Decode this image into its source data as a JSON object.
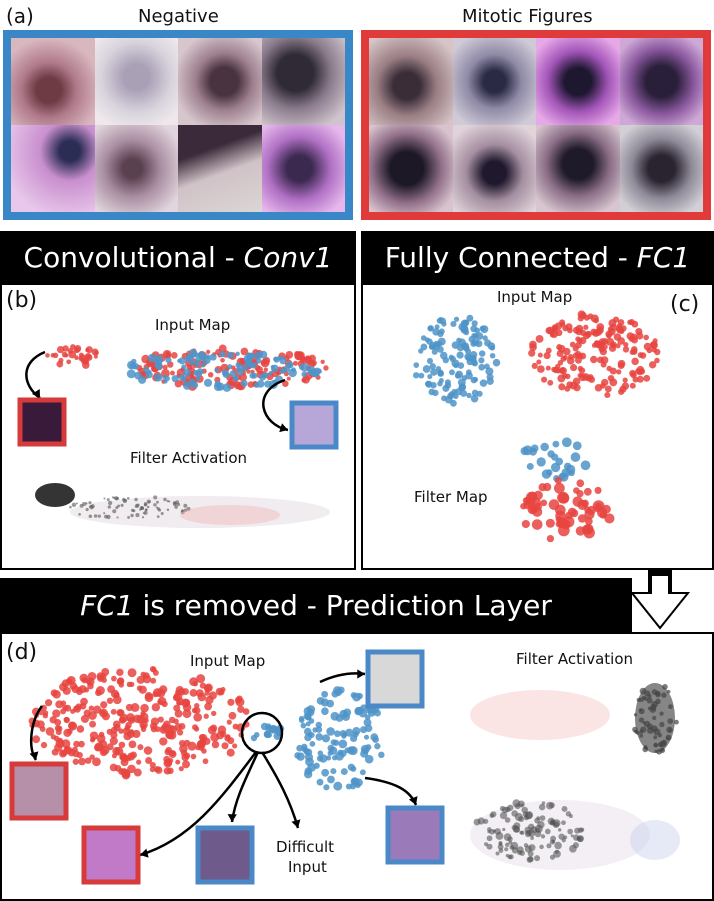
{
  "panel_a": {
    "label": "(a)",
    "negative_title": "Negative",
    "mitotic_title": "Mitotic Figures",
    "negative_color": "#3a87c8",
    "mitotic_color": "#e03a3a"
  },
  "panel_b": {
    "header_prefix": "Convolutional - ",
    "header_italic": "Conv1",
    "label": "(b)",
    "input_map": "Input Map",
    "filter_activation": "Filter Activation"
  },
  "panel_c": {
    "header_prefix": "Fully Connected - ",
    "header_italic": "FC1",
    "label": "(c)",
    "input_map": "Input Map",
    "filter_map": "Filter Map"
  },
  "panel_d": {
    "header_italic": "FC1",
    "header_suffix": " is removed - Prediction Layer",
    "label": "(d)",
    "input_map": "Input Map",
    "filter_activation": "Filter Activation",
    "difficult_line1": "Difficult",
    "difficult_line2": "Input"
  },
  "colors": {
    "red_points": "#e8443f",
    "blue_points": "#4f94c8",
    "black": "#000000"
  },
  "icons": [
    "down-arrow-icon"
  ]
}
